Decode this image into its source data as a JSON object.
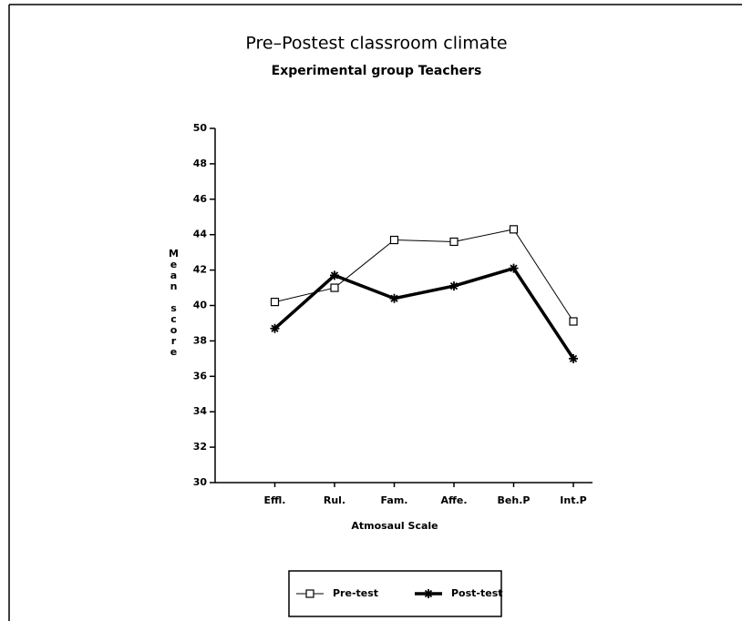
{
  "chart_data": {
    "type": "line",
    "title": "Pre–Postest classroom climate",
    "subtitle": "Experimental group Teachers",
    "y_label": "Mean score",
    "x_label": "Atmosaul Scale",
    "categories": [
      "Effl.",
      "Rul.",
      "Fam.",
      "Affe.",
      "Beh.P",
      "Int.P"
    ],
    "series": [
      {
        "name": "Pre-test",
        "color": "#000000",
        "marker": "square",
        "linewidth": 1,
        "values": [
          40.2,
          41.0,
          43.7,
          43.6,
          44.3,
          39.1
        ]
      },
      {
        "name": "Post-test",
        "color": "#000000",
        "marker": "star",
        "linewidth": 3.5,
        "values": [
          38.7,
          41.7,
          40.4,
          41.1,
          42.1,
          37.0
        ]
      }
    ],
    "ylim": [
      30,
      50
    ],
    "yticks": [
      30,
      32,
      34,
      36,
      38,
      40,
      42,
      44,
      46,
      48,
      50
    ],
    "legend": "bottom",
    "grid": false
  }
}
